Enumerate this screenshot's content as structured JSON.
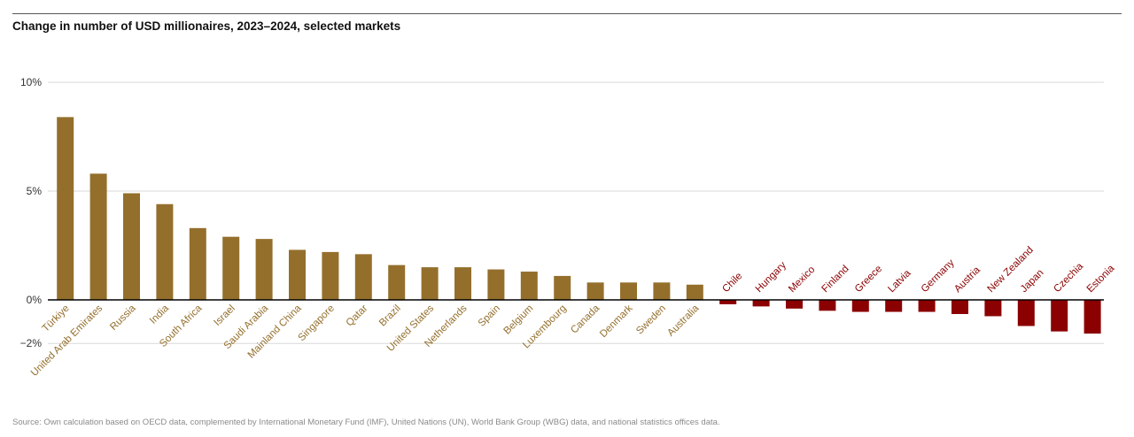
{
  "title": "Change in number of USD millionaires, 2023–2024, selected markets",
  "source": "Source: Own calculation based on OECD data, complemented by International Monetary Fund (IMF), United Nations (UN), World Bank Group (WBG) data, and national statistics offices data.",
  "colors": {
    "positive": "#946f2c",
    "negative": "#8b0000",
    "grid": "#d9d9d9",
    "axis": "#000000"
  },
  "chart_data": {
    "type": "bar",
    "title": "Change in number of USD millionaires, 2023–2024, selected markets",
    "xlabel": "",
    "ylabel": "",
    "ylim": [
      -2,
      10
    ],
    "yticks": [
      10,
      5,
      0,
      -2
    ],
    "ytick_labels": [
      "10%",
      "5%",
      "0%",
      "−2%"
    ],
    "grid": true,
    "categories": [
      "Türkiye",
      "United Arab Emirates",
      "Russia",
      "India",
      "South Africa",
      "Israel",
      "Saudi Arabia",
      "Mainland China",
      "Singapore",
      "Qatar",
      "Brazil",
      "United States",
      "Netherlands",
      "Spain",
      "Belgium",
      "Luxembourg",
      "Canada",
      "Denmark",
      "Sweden",
      "Australia",
      "Chile",
      "Hungary",
      "Mexico",
      "Finland",
      "Greece",
      "Latvia",
      "Germany",
      "Austria",
      "New Zealand",
      "Japan",
      "Czechia",
      "Estonia"
    ],
    "values": [
      8.4,
      5.8,
      4.9,
      4.4,
      3.3,
      2.9,
      2.8,
      2.3,
      2.2,
      2.1,
      1.6,
      1.5,
      1.5,
      1.4,
      1.3,
      1.1,
      0.8,
      0.8,
      0.8,
      0.7,
      -0.2,
      -0.3,
      -0.4,
      -0.5,
      -0.55,
      -0.55,
      -0.55,
      -0.65,
      -0.75,
      -1.2,
      -1.45,
      -1.55
    ]
  }
}
